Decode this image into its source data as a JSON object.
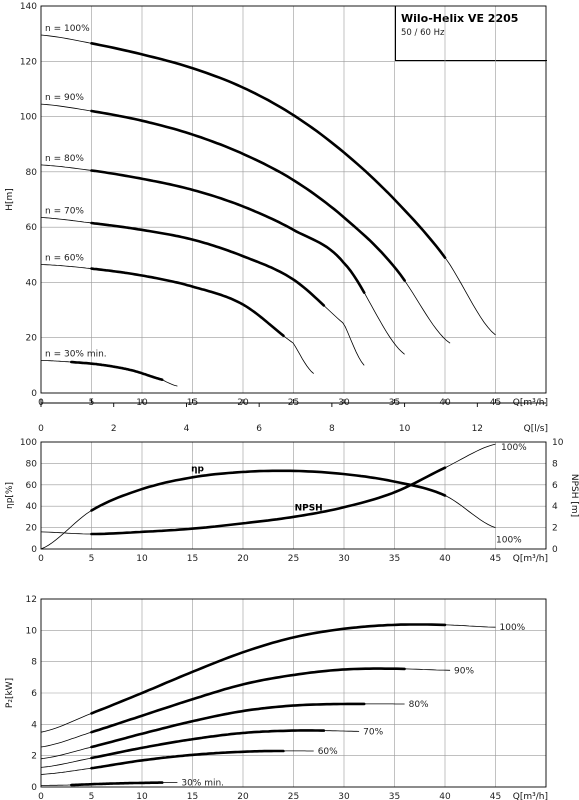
{
  "title": "Wilo-Helix VE 2205",
  "subtitle": "50 / 60 Hz",
  "chart_data": [
    {
      "type": "line",
      "name": "head",
      "ylabel": "H[m]",
      "xlabel": "Q[m³/h]",
      "xlabel2": "Q[l/s]",
      "xlim": [
        0,
        50
      ],
      "ylim": [
        0,
        140
      ],
      "x_ticks": [
        0,
        5,
        10,
        15,
        20,
        25,
        30,
        35,
        40,
        45
      ],
      "x2_ticks": [
        0,
        2,
        4,
        6,
        8,
        10,
        12
      ],
      "y_ticks": [
        0,
        20,
        40,
        60,
        80,
        100,
        120,
        140
      ],
      "series": [
        {
          "name": "n = 100%",
          "x": [
            0,
            5,
            10,
            15,
            20,
            25,
            30,
            35,
            40,
            45
          ],
          "y": [
            129.5,
            126.5,
            122.5,
            117.5,
            110.5,
            100.5,
            87,
            70,
            49,
            21
          ],
          "thick": [
            5,
            40
          ]
        },
        {
          "name": "n = 90%",
          "x": [
            0,
            5,
            10,
            15,
            20,
            25,
            30,
            35,
            40.5
          ],
          "y": [
            104.5,
            102,
            98.5,
            93.5,
            86.5,
            77,
            63.5,
            45.5,
            18
          ],
          "thick": [
            5,
            36
          ]
        },
        {
          "name": "n = 80%",
          "x": [
            0,
            5,
            10,
            15,
            20,
            25,
            30,
            36
          ],
          "y": [
            82.5,
            80.5,
            77.5,
            73.5,
            67.5,
            59,
            47,
            14
          ],
          "thick": [
            5,
            32
          ]
        },
        {
          "name": "n = 70%",
          "x": [
            0,
            5,
            10,
            15,
            20,
            25,
            30,
            32
          ],
          "y": [
            63.5,
            61.5,
            59,
            55.5,
            49.5,
            41,
            25,
            10
          ],
          "thick": [
            5,
            28
          ]
        },
        {
          "name": "n = 60%",
          "x": [
            0,
            5,
            10,
            15,
            20,
            25,
            27
          ],
          "y": [
            46.5,
            45,
            42.5,
            38.5,
            32,
            18,
            7
          ],
          "thick": [
            5,
            24
          ]
        },
        {
          "name": "n = 30% min.",
          "x": [
            0,
            3,
            6,
            9,
            12,
            13.5
          ],
          "y": [
            11.8,
            11.2,
            10.2,
            8.2,
            4.8,
            2.5
          ],
          "thick": [
            3,
            12
          ]
        }
      ]
    },
    {
      "type": "line",
      "name": "efficiency-npsh",
      "ylabel": "ηp[%]",
      "ylabel_right": "NPSH [m]",
      "xlabel": "Q[m³/h]",
      "xlim": [
        0,
        50
      ],
      "ylim": [
        0,
        100
      ],
      "ylim_right": [
        0,
        10
      ],
      "x_ticks": [
        0,
        5,
        10,
        15,
        20,
        25,
        30,
        35,
        40,
        45
      ],
      "y_ticks": [
        0,
        20,
        40,
        60,
        80,
        100
      ],
      "y_ticks_right": [
        0,
        2,
        4,
        6,
        8,
        10
      ],
      "series": [
        {
          "name": "ηp",
          "end_label": "100%",
          "axis": "left",
          "x": [
            0,
            5,
            10,
            15,
            20,
            25,
            30,
            35,
            40,
            45
          ],
          "y": [
            0,
            36,
            56,
            67,
            72,
            73,
            70,
            63,
            50,
            20
          ],
          "thick": [
            5,
            40
          ]
        },
        {
          "name": "NPSH",
          "end_label": "100%",
          "axis": "right",
          "x": [
            0,
            5,
            10,
            15,
            20,
            25,
            30,
            35,
            40,
            45
          ],
          "y": [
            1.6,
            1.4,
            1.6,
            1.9,
            2.4,
            3.0,
            3.9,
            5.3,
            7.6,
            9.8
          ],
          "thick": [
            5,
            40
          ]
        }
      ]
    },
    {
      "type": "line",
      "name": "power",
      "ylabel": "P₂[kW]",
      "xlabel": "Q[m³/h]",
      "xlim": [
        0,
        50
      ],
      "ylim": [
        0,
        12
      ],
      "x_ticks": [
        0,
        5,
        10,
        15,
        20,
        25,
        30,
        35,
        40,
        45
      ],
      "y_ticks": [
        0,
        2,
        4,
        6,
        8,
        10,
        12
      ],
      "series": [
        {
          "name": "100%",
          "x": [
            0,
            5,
            10,
            15,
            20,
            25,
            30,
            35,
            40,
            45
          ],
          "y": [
            3.5,
            4.7,
            6.0,
            7.35,
            8.6,
            9.55,
            10.1,
            10.35,
            10.35,
            10.2
          ],
          "thick": [
            5,
            40
          ]
        },
        {
          "name": "90%",
          "x": [
            0,
            5,
            10,
            15,
            20,
            25,
            30,
            35,
            40.5
          ],
          "y": [
            2.55,
            3.5,
            4.55,
            5.6,
            6.55,
            7.15,
            7.5,
            7.55,
            7.45
          ],
          "thick": [
            5,
            36
          ]
        },
        {
          "name": "80%",
          "x": [
            0,
            5,
            10,
            15,
            20,
            25,
            30,
            36
          ],
          "y": [
            1.8,
            2.55,
            3.4,
            4.2,
            4.85,
            5.2,
            5.3,
            5.3
          ],
          "thick": [
            5,
            32
          ]
        },
        {
          "name": "70%",
          "x": [
            0,
            5,
            10,
            15,
            20,
            25,
            28,
            31.5
          ],
          "y": [
            1.25,
            1.85,
            2.5,
            3.05,
            3.45,
            3.6,
            3.6,
            3.55
          ],
          "thick": [
            5,
            28
          ]
        },
        {
          "name": "60%",
          "x": [
            0,
            5,
            10,
            15,
            20,
            24,
            27
          ],
          "y": [
            0.8,
            1.2,
            1.7,
            2.05,
            2.25,
            2.3,
            2.3
          ],
          "thick": [
            5,
            24
          ]
        },
        {
          "name": "30% min.",
          "x": [
            0,
            3,
            6,
            9,
            12,
            13.5
          ],
          "y": [
            0.1,
            0.13,
            0.2,
            0.25,
            0.28,
            0.28
          ],
          "thick": [
            3,
            12
          ]
        }
      ]
    }
  ]
}
